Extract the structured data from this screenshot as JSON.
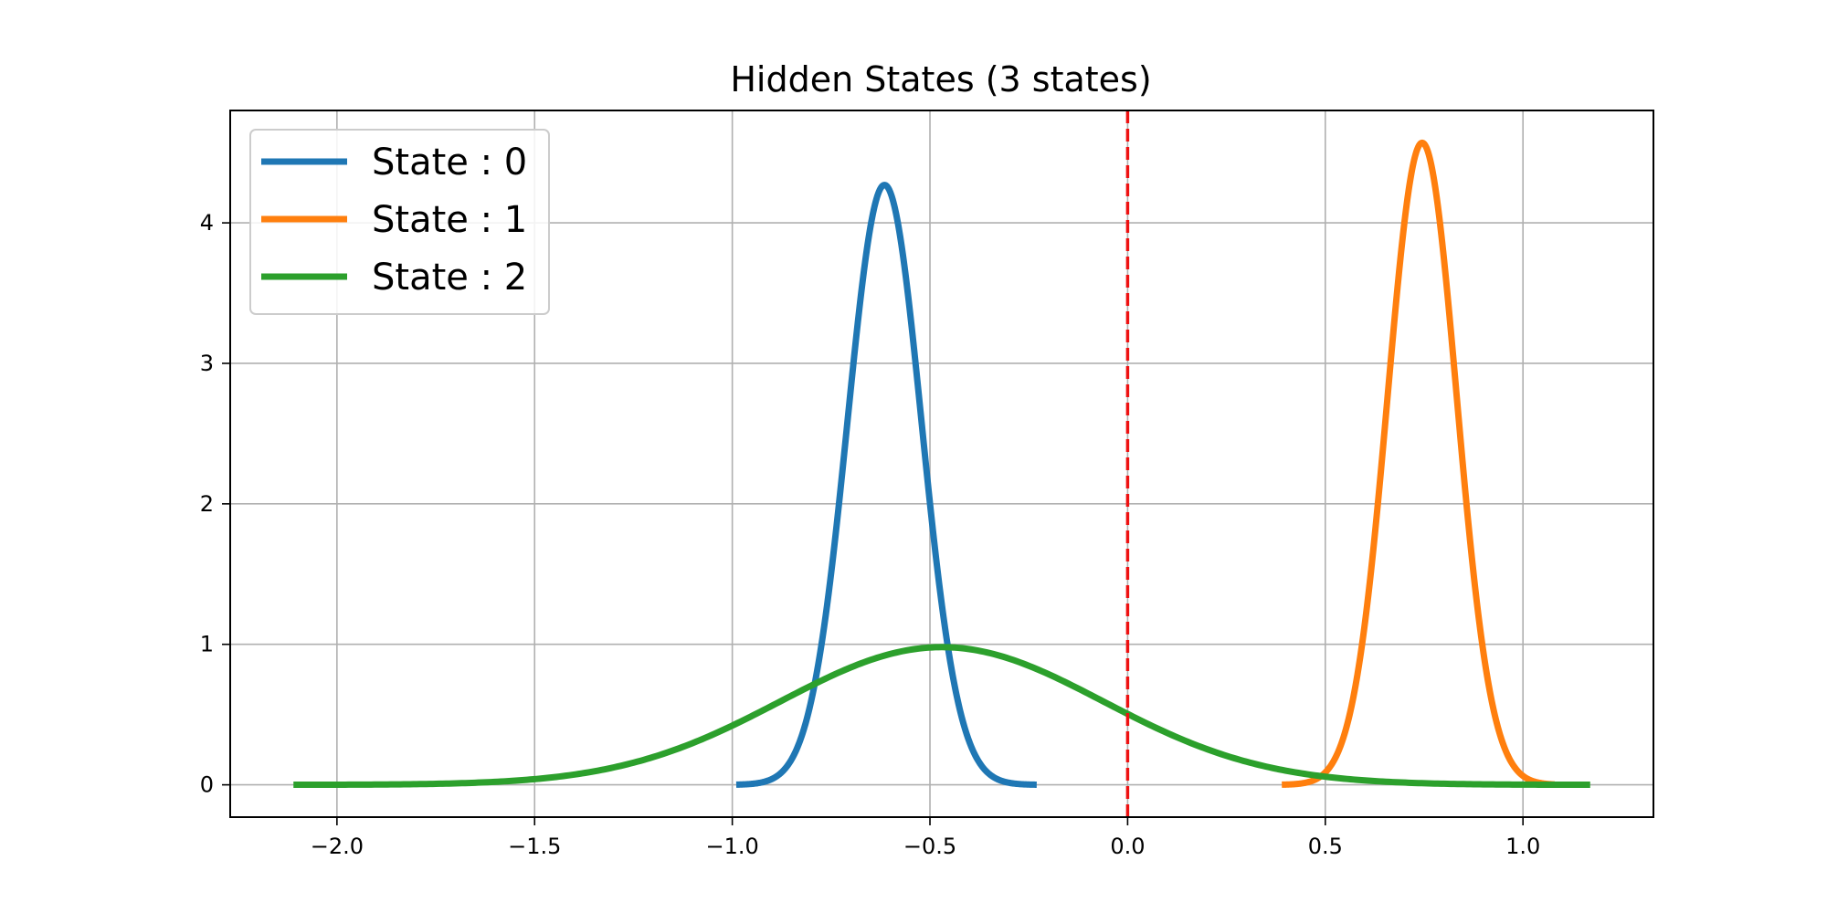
{
  "chart_data": {
    "type": "line",
    "title": "Hidden States (3 states)",
    "xlabel": "",
    "ylabel": "",
    "xlim": [
      -2.27,
      1.33
    ],
    "ylim": [
      -0.23,
      4.8
    ],
    "xticks": [
      -2.0,
      -1.5,
      -1.0,
      -0.5,
      0.0,
      0.5,
      1.0
    ],
    "xtick_labels": [
      "−2.0",
      "−1.5",
      "−1.0",
      "−0.5",
      "0.0",
      "0.5",
      "1.0"
    ],
    "yticks": [
      0,
      1,
      2,
      3,
      4
    ],
    "ytick_labels": [
      "0",
      "1",
      "2",
      "3",
      "4"
    ],
    "grid": true,
    "legend_position": "top-left",
    "series": [
      {
        "name": "State : 0",
        "color": "#1f77b4",
        "distribution": "normal",
        "mean": -0.615,
        "sd": 0.0935,
        "x_range": [
          -0.99,
          -0.23
        ],
        "peak_y": 4.27
      },
      {
        "name": "State : 1",
        "color": "#ff7f0e",
        "distribution": "normal",
        "mean": 0.745,
        "sd": 0.0872,
        "x_range": [
          0.39,
          1.08
        ],
        "peak_y": 4.57
      },
      {
        "name": "State : 2",
        "color": "#2ca02c",
        "distribution": "normal",
        "mean": -0.47,
        "sd": 0.408,
        "x_range": [
          -2.11,
          1.17
        ],
        "peak_y": 0.98
      }
    ],
    "vline": {
      "x": 0.0,
      "color": "#ee1111",
      "style": "dashed"
    }
  }
}
